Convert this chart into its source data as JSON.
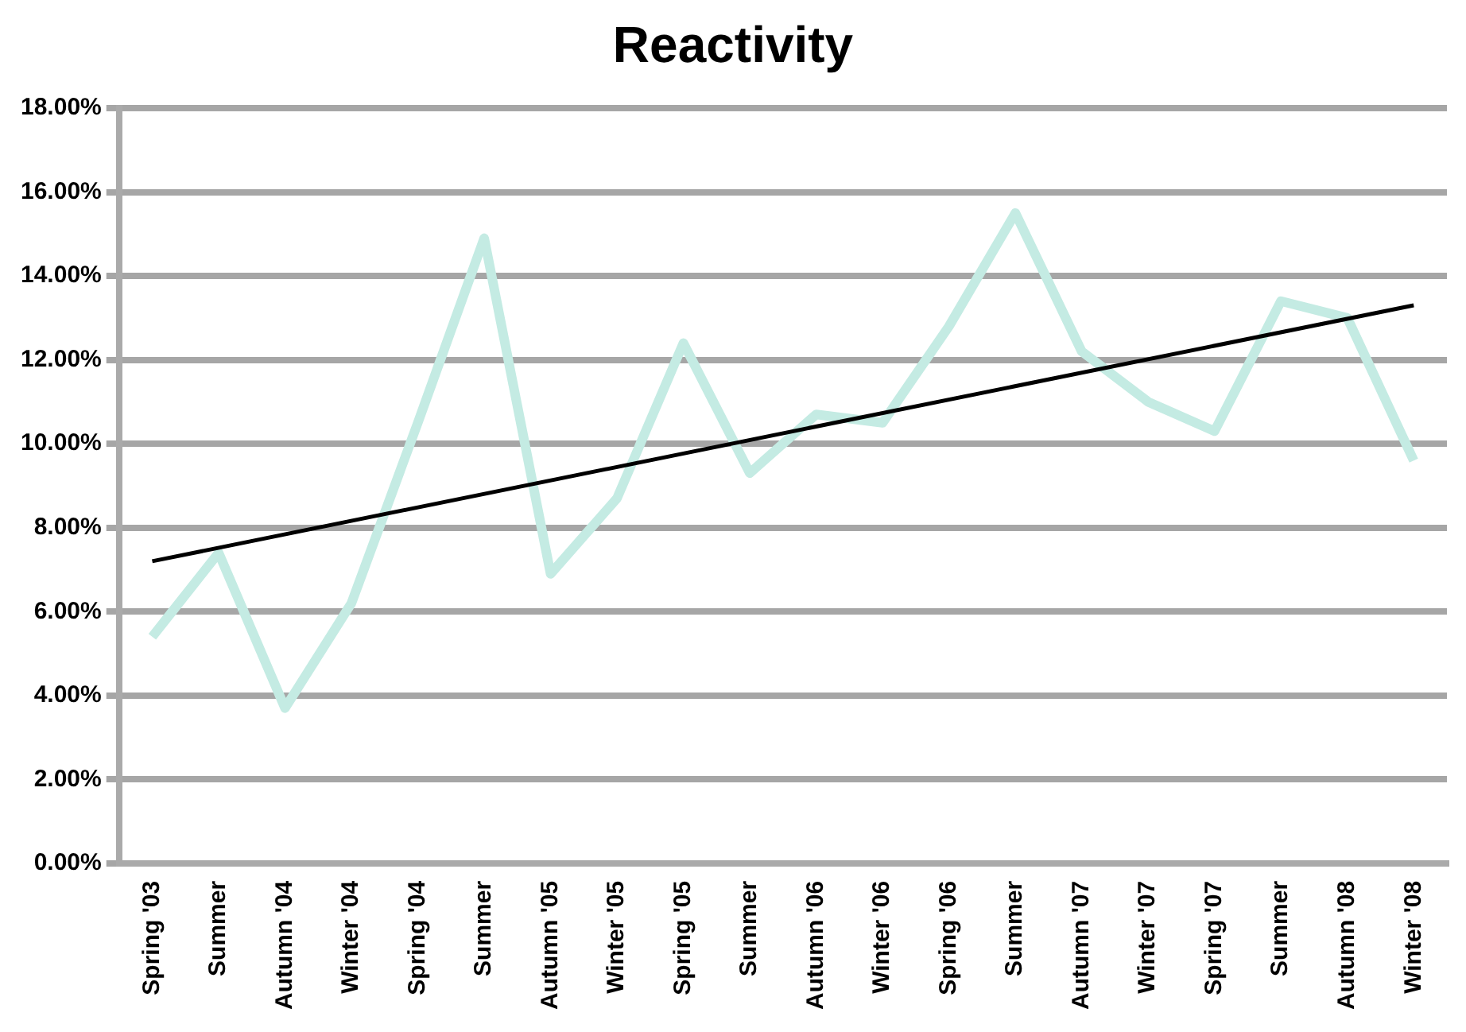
{
  "chart_data": {
    "type": "line",
    "title": "Reactivity",
    "categories": [
      "Spring '03",
      "Summer",
      "Autumn '04",
      "Winter '04",
      "Spring '04",
      "Summer",
      "Autumn '05",
      "Winter '05",
      "Spring '05",
      "Summer",
      "Autumn '06",
      "Winter '06",
      "Spring '06",
      "Summer",
      "Autumn '07",
      "Winter '07",
      "Spring '07",
      "Summer",
      "Autumn '08",
      "Winter '08"
    ],
    "series": [
      {
        "color": "#c4ebe3",
        "values": [
          5.4,
          7.4,
          3.7,
          6.2,
          10.5,
          14.9,
          6.9,
          8.7,
          12.4,
          9.3,
          10.7,
          10.5,
          12.8,
          15.5,
          12.2,
          11.0,
          10.3,
          13.4,
          13.0,
          9.6
        ]
      },
      {
        "type": "line",
        "color": "#000000",
        "values": [
          7.2,
          null,
          null,
          null,
          null,
          null,
          null,
          null,
          null,
          null,
          null,
          null,
          null,
          null,
          null,
          null,
          null,
          null,
          null,
          13.3
        ]
      }
    ],
    "ylim": [
      0,
      18
    ],
    "yticks": [
      {
        "value": 0,
        "label": "0.00%"
      },
      {
        "value": 2,
        "label": "2.00%"
      },
      {
        "value": 4,
        "label": "4.00%"
      },
      {
        "value": 6,
        "label": "6.00%"
      },
      {
        "value": 8,
        "label": "8.00%"
      },
      {
        "value": 10,
        "label": "10.00%"
      },
      {
        "value": 12,
        "label": "12.00%"
      },
      {
        "value": 14,
        "label": "14.00%"
      },
      {
        "value": 16,
        "label": "16.00%"
      },
      {
        "value": 18,
        "label": "18.00%"
      }
    ],
    "grid": "y",
    "legend": false,
    "marker": "none",
    "line_style": "solid"
  }
}
